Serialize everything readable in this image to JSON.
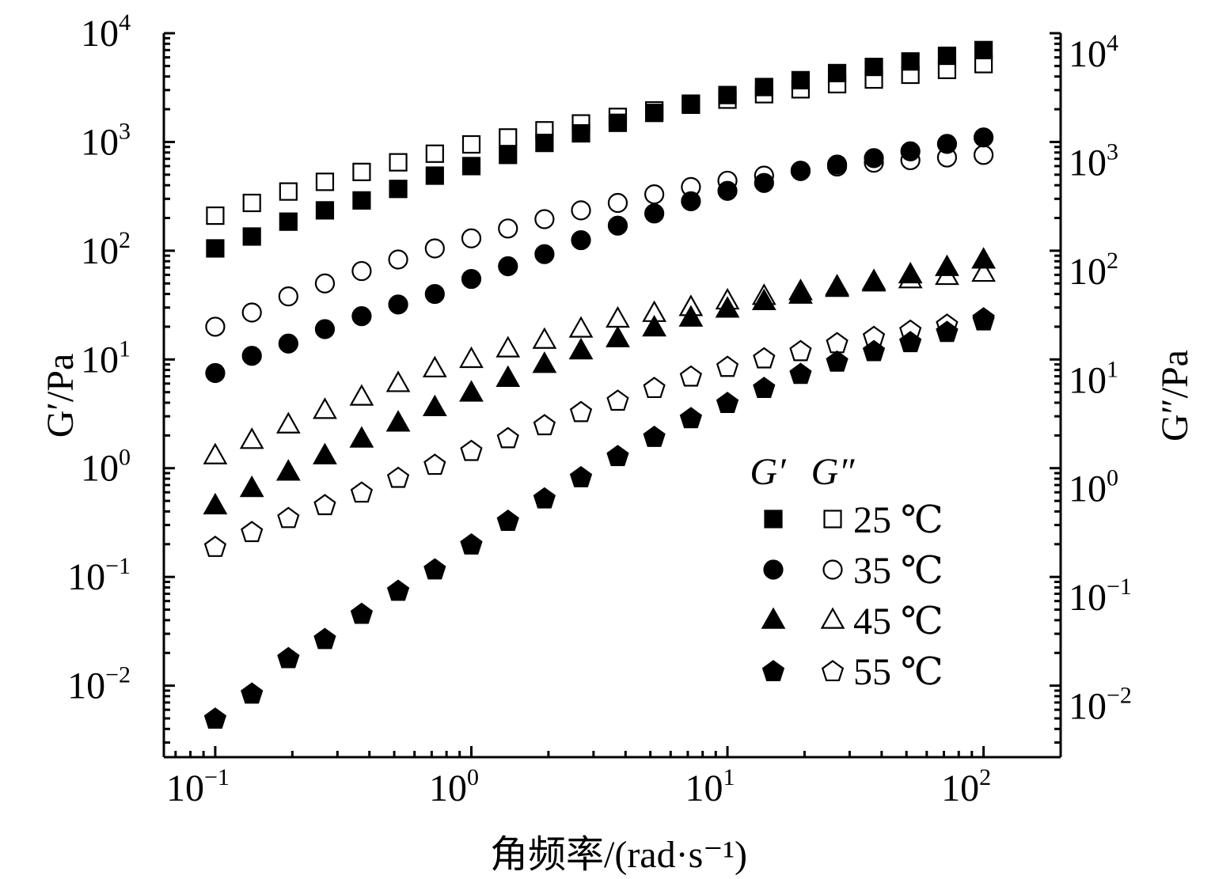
{
  "chart_data": {
    "type": "scatter",
    "x_scale": "log",
    "y_scale": "log",
    "xlabel": "角频率/(rad·s⁻¹)",
    "ylabel_left": "G′/Pa",
    "ylabel_right": "G″/Pa",
    "xlim": [
      0.063,
      200
    ],
    "ylim": [
      0.0022,
      10000
    ],
    "x_ticks": [
      {
        "value": 0.1,
        "base": "10",
        "exp": "−1"
      },
      {
        "value": 1,
        "base": "10",
        "exp": "0"
      },
      {
        "value": 10,
        "base": "10",
        "exp": "1"
      },
      {
        "value": 100,
        "base": "10",
        "exp": "2"
      }
    ],
    "y_ticks": [
      {
        "value": 0.01,
        "base": "10",
        "exp": "−2"
      },
      {
        "value": 0.1,
        "base": "10",
        "exp": "−1"
      },
      {
        "value": 1,
        "base": "10",
        "exp": "0"
      },
      {
        "value": 10,
        "base": "10",
        "exp": "1"
      },
      {
        "value": 100,
        "base": "10",
        "exp": "2"
      },
      {
        "value": 1000,
        "base": "10",
        "exp": "3"
      },
      {
        "value": 10000,
        "base": "10",
        "exp": "4"
      }
    ],
    "legend": {
      "header_gp": "G′",
      "header_gpp": "G″",
      "placement": "lower-right",
      "entries": [
        {
          "label": "25 ℃",
          "marker": "square"
        },
        {
          "label": "35 ℃",
          "marker": "circle"
        },
        {
          "label": "45 ℃",
          "marker": "triangle"
        },
        {
          "label": "55 ℃",
          "marker": "pentagon"
        }
      ]
    },
    "x": [
      0.1,
      0.139,
      0.193,
      0.268,
      0.373,
      0.518,
      0.72,
      1.0,
      1.39,
      1.93,
      2.68,
      3.73,
      5.18,
      7.2,
      10.0,
      13.9,
      19.3,
      26.8,
      37.3,
      51.8,
      72.0,
      100.0
    ],
    "series": [
      {
        "label": "25 ℃",
        "modulus": "G′",
        "marker": "square",
        "filled": true,
        "values": [
          105,
          135,
          185,
          235,
          290,
          370,
          490,
          600,
          760,
          980,
          1200,
          1500,
          1850,
          2250,
          2700,
          3200,
          3700,
          4300,
          4900,
          5500,
          6200,
          7000
        ]
      },
      {
        "label": "25 ℃",
        "modulus": "G″",
        "marker": "square",
        "filled": false,
        "values": [
          210,
          275,
          350,
          430,
          530,
          650,
          780,
          950,
          1100,
          1280,
          1480,
          1700,
          1950,
          2200,
          2450,
          2750,
          3050,
          3400,
          3750,
          4150,
          4600,
          5200
        ]
      },
      {
        "label": "35 ℃",
        "modulus": "G′",
        "marker": "circle",
        "filled": true,
        "values": [
          7.5,
          10.8,
          14,
          19,
          25,
          32,
          40,
          55,
          72,
          93,
          125,
          170,
          220,
          285,
          355,
          420,
          540,
          620,
          710,
          820,
          960,
          1100
        ]
      },
      {
        "label": "35 ℃",
        "modulus": "G″",
        "marker": "circle",
        "filled": false,
        "values": [
          20,
          27,
          38,
          50,
          65,
          83,
          105,
          130,
          160,
          195,
          235,
          275,
          330,
          385,
          440,
          490,
          545,
          595,
          645,
          680,
          720,
          760
        ]
      },
      {
        "label": "45 ℃",
        "modulus": "G′",
        "marker": "triangle",
        "filled": true,
        "values": [
          0.45,
          0.65,
          0.92,
          1.3,
          1.85,
          2.6,
          3.6,
          4.9,
          6.7,
          9.0,
          12,
          15.5,
          19.5,
          24,
          29,
          34,
          39,
          45,
          52,
          60,
          70,
          82
        ]
      },
      {
        "label": "45 ℃",
        "modulus": "G″",
        "marker": "triangle",
        "filled": false,
        "values": [
          1.3,
          1.8,
          2.5,
          3.4,
          4.5,
          6.0,
          8.2,
          10,
          12.5,
          15,
          19,
          23.5,
          26.5,
          30,
          34.5,
          38,
          42,
          46.5,
          50.5,
          54,
          58,
          62
        ]
      },
      {
        "label": "55 ℃",
        "modulus": "G′",
        "marker": "pentagon",
        "filled": true,
        "values": [
          0.005,
          0.0085,
          0.018,
          0.027,
          0.046,
          0.075,
          0.118,
          0.2,
          0.33,
          0.53,
          0.83,
          1.3,
          1.95,
          2.9,
          4.0,
          5.5,
          7.4,
          9.6,
          12,
          14.5,
          18,
          23
        ]
      },
      {
        "label": "55 ℃",
        "modulus": "G″",
        "marker": "pentagon",
        "filled": false,
        "values": [
          0.19,
          0.26,
          0.35,
          0.46,
          0.6,
          0.82,
          1.08,
          1.45,
          1.9,
          2.5,
          3.3,
          4.2,
          5.5,
          7.0,
          8.6,
          10.3,
          12,
          14.2,
          16.2,
          18.5,
          21,
          24
        ]
      }
    ]
  }
}
